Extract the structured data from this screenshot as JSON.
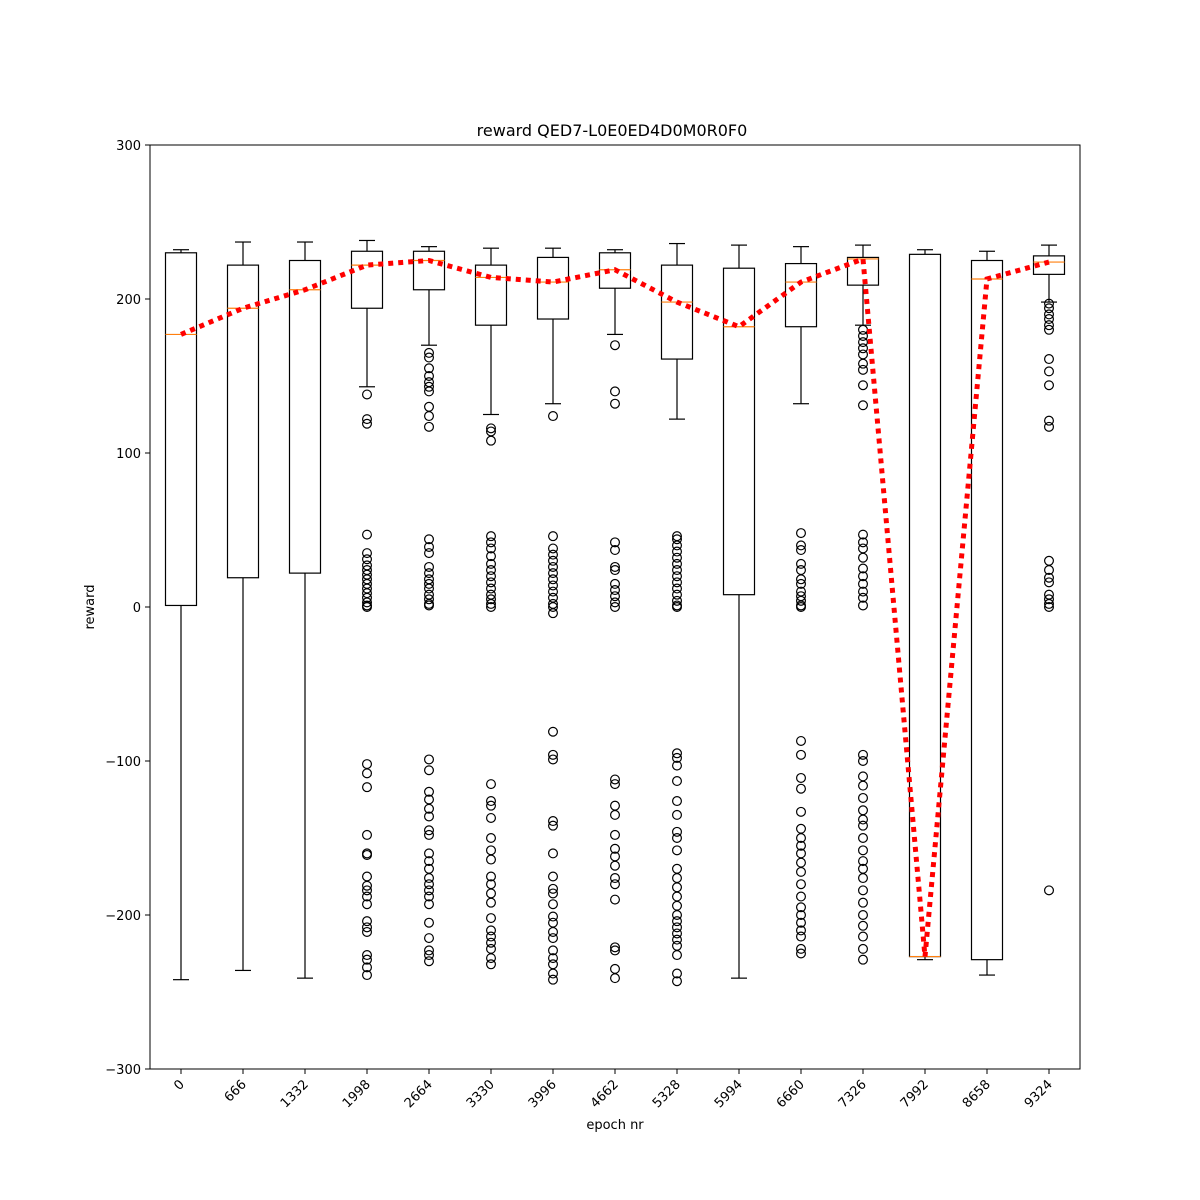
{
  "chart_data": {
    "type": "box",
    "title": "reward QED7-L0E0ED4D0M0R0F0",
    "xlabel": "epoch nr",
    "ylabel": "reward",
    "ylim": [
      -300,
      300
    ],
    "yticks": [
      -300,
      -200,
      -100,
      0,
      100,
      200,
      300
    ],
    "categories": [
      "0",
      "666",
      "1332",
      "1998",
      "2664",
      "3330",
      "3996",
      "4662",
      "5328",
      "5994",
      "6660",
      "7326",
      "7992",
      "8658",
      "9324"
    ],
    "boxes": [
      {
        "label": "0",
        "whisker_low": -242,
        "q1": 1,
        "median": 177,
        "q3": 230,
        "whisker_high": 232,
        "outliers": []
      },
      {
        "label": "666",
        "whisker_low": -236,
        "q1": 19,
        "median": 194,
        "q3": 222,
        "whisker_high": 237,
        "outliers": []
      },
      {
        "label": "1332",
        "whisker_low": -241,
        "q1": 22,
        "median": 206,
        "q3": 225,
        "whisker_high": 237,
        "outliers": []
      },
      {
        "label": "1998",
        "whisker_low": 143,
        "q1": 194,
        "median": 222,
        "q3": 231,
        "whisker_high": 238,
        "outliers": [
          138,
          122,
          119,
          47,
          35,
          31,
          27,
          24,
          21,
          18,
          15,
          12,
          9,
          6,
          3,
          1,
          0,
          -102,
          -108,
          -117,
          -148,
          -160,
          -161,
          -175,
          -181,
          -184,
          -188,
          -193,
          -204,
          -208,
          -211,
          -226,
          -229,
          -234,
          -239
        ]
      },
      {
        "label": "2664",
        "whisker_low": 170,
        "q1": 206,
        "median": 225,
        "q3": 231,
        "whisker_high": 234,
        "outliers": [
          165,
          162,
          155,
          150,
          146,
          143,
          140,
          130,
          124,
          117,
          44,
          39,
          35,
          26,
          22,
          18,
          15,
          12,
          8,
          5,
          2,
          1,
          -99,
          -106,
          -120,
          -125,
          -131,
          -136,
          -145,
          -148,
          -160,
          -165,
          -170,
          -176,
          -180,
          -184,
          -188,
          -193,
          -205,
          -215,
          -223,
          -226,
          -230
        ]
      },
      {
        "label": "3330",
        "whisker_low": 125,
        "q1": 183,
        "median": 214,
        "q3": 222,
        "whisker_high": 233,
        "outliers": [
          116,
          114,
          108,
          46,
          42,
          38,
          33,
          28,
          24,
          20,
          16,
          12,
          8,
          5,
          2,
          0,
          -115,
          -126,
          -129,
          -137,
          -150,
          -158,
          -164,
          -175,
          -180,
          -186,
          -192,
          -202,
          -210,
          -214,
          -218,
          -222,
          -228,
          -232
        ]
      },
      {
        "label": "3996",
        "whisker_low": 132,
        "q1": 187,
        "median": 211,
        "q3": 227,
        "whisker_high": 233,
        "outliers": [
          124,
          46,
          38,
          34,
          30,
          26,
          22,
          18,
          14,
          10,
          6,
          2,
          0,
          -4,
          -81,
          -96,
          -99,
          -139,
          -142,
          -160,
          -175,
          -183,
          -186,
          -193,
          -201,
          -205,
          -211,
          -215,
          -223,
          -228,
          -232,
          -238,
          -242
        ]
      },
      {
        "label": "4662",
        "whisker_low": 177,
        "q1": 207,
        "median": 219,
        "q3": 230,
        "whisker_high": 232,
        "outliers": [
          170,
          140,
          132,
          42,
          37,
          26,
          24,
          15,
          11,
          7,
          3,
          0,
          -112,
          -115,
          -129,
          -135,
          -148,
          -157,
          -162,
          -168,
          -176,
          -180,
          -190,
          -221,
          -223,
          -235,
          -241
        ]
      },
      {
        "label": "5328",
        "whisker_low": 122,
        "q1": 161,
        "median": 198,
        "q3": 222,
        "whisker_high": 236,
        "outliers": [
          46,
          44,
          40,
          36,
          32,
          28,
          24,
          20,
          16,
          12,
          8,
          4,
          1,
          0,
          -95,
          -98,
          -103,
          -113,
          -126,
          -135,
          -146,
          -150,
          -158,
          -170,
          -176,
          -182,
          -188,
          -194,
          -200,
          -204,
          -208,
          -212,
          -216,
          -220,
          -226,
          -238,
          -243
        ]
      },
      {
        "label": "5994",
        "whisker_low": -241,
        "q1": 8,
        "median": 182,
        "q3": 220,
        "whisker_high": 235,
        "outliers": []
      },
      {
        "label": "6660",
        "whisker_low": 132,
        "q1": 182,
        "median": 211,
        "q3": 223,
        "whisker_high": 234,
        "outliers": [
          48,
          40,
          37,
          28,
          24,
          18,
          15,
          10,
          7,
          4,
          1,
          0,
          -87,
          -96,
          -111,
          -118,
          -133,
          -144,
          -150,
          -155,
          -160,
          -166,
          -172,
          -180,
          -188,
          -195,
          -200,
          -205,
          -210,
          -214,
          -222,
          -225
        ]
      },
      {
        "label": "7326",
        "whisker_low": 183,
        "q1": 209,
        "median": 226,
        "q3": 227,
        "whisker_high": 235,
        "outliers": [
          180,
          176,
          172,
          168,
          164,
          158,
          154,
          144,
          131,
          47,
          42,
          38,
          32,
          25,
          20,
          15,
          10,
          6,
          1,
          -96,
          -100,
          -110,
          -116,
          -124,
          -132,
          -138,
          -142,
          -150,
          -158,
          -165,
          -170,
          -176,
          -184,
          -192,
          -200,
          -207,
          -214,
          -222,
          -229
        ]
      },
      {
        "label": "7992",
        "whisker_low": -229,
        "q1": -227,
        "median": -227,
        "q3": 229,
        "whisker_high": 232,
        "outliers": []
      },
      {
        "label": "8658",
        "whisker_low": -239,
        "q1": -229,
        "median": 213,
        "q3": 225,
        "whisker_high": 231,
        "outliers": []
      },
      {
        "label": "9324",
        "whisker_low": 198,
        "q1": 216,
        "median": 224,
        "q3": 228,
        "whisker_high": 235,
        "outliers": [
          197,
          194,
          190,
          187,
          183,
          180,
          161,
          153,
          144,
          121,
          117,
          30,
          24,
          19,
          16,
          8,
          5,
          2,
          0,
          -184
        ]
      }
    ],
    "trend_line": {
      "style": "dotted",
      "color": "#ff0000",
      "values": [
        177,
        194,
        206,
        222,
        225,
        214,
        211,
        219,
        198,
        182,
        211,
        226,
        -227,
        213,
        224
      ]
    },
    "colors": {
      "box": "#000000",
      "median": "#ff7f0e",
      "trend": "#ff0000"
    },
    "grid": false
  }
}
